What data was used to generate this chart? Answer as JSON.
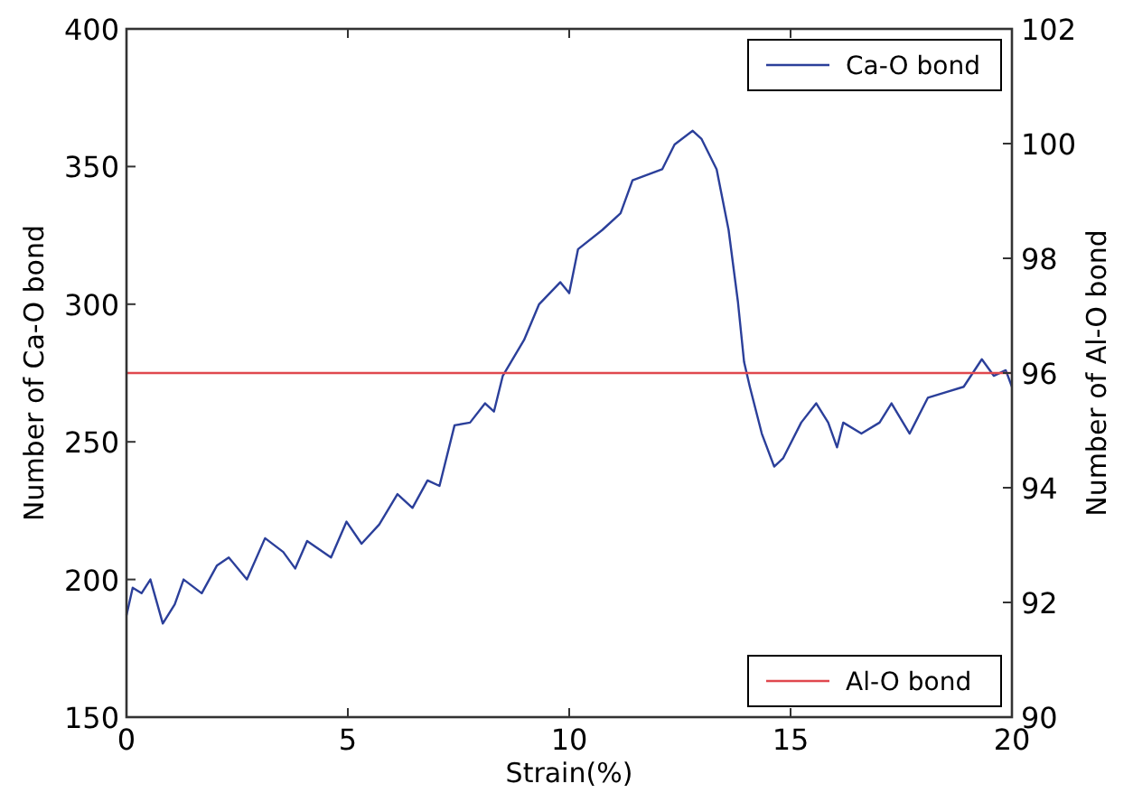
{
  "chart_data": {
    "type": "line",
    "xlabel": "Strain(%)",
    "ylabel": "Number of Ca-O bond",
    "y2label": "Number of Al-O bond",
    "xlim": [
      0,
      20
    ],
    "xticks": [
      0,
      5,
      10,
      15,
      20
    ],
    "ylim": [
      150,
      400
    ],
    "yticks": [
      150,
      200,
      250,
      300,
      350,
      400
    ],
    "y2lim": [
      90,
      102
    ],
    "y2ticks": [
      90,
      92,
      94,
      96,
      98,
      100,
      102
    ],
    "grid": false,
    "legend": "right",
    "line_style": "solid",
    "marker": "none",
    "series": [
      {
        "name": "Ca-O bond",
        "color": "#2b3f9a",
        "x": [
          0.0,
          0.14,
          0.34,
          0.54,
          0.82,
          1.09,
          1.29,
          1.7,
          2.04,
          2.31,
          2.72,
          3.13,
          3.54,
          3.81,
          4.08,
          4.62,
          4.97,
          5.31,
          5.71,
          6.12,
          6.46,
          6.8,
          7.07,
          7.41,
          7.76,
          8.1,
          8.3,
          8.5,
          8.98,
          9.32,
          9.8,
          10.0,
          10.2,
          10.75,
          11.16,
          11.43,
          12.1,
          12.38,
          12.79,
          12.99,
          13.33,
          13.6,
          13.81,
          13.95,
          14.08,
          14.35,
          14.63,
          14.83,
          15.24,
          15.58,
          15.85,
          16.05,
          16.19,
          16.6,
          17.01,
          17.28,
          17.69,
          18.1,
          18.5,
          18.91,
          19.32,
          19.59,
          19.86,
          20.0
        ],
        "values": [
          187,
          197,
          195,
          200,
          184,
          191,
          200,
          195,
          205,
          208,
          200,
          215,
          210,
          204,
          214,
          208,
          221,
          213,
          220,
          231,
          226,
          236,
          234,
          256,
          257,
          264,
          261,
          274,
          287,
          300,
          308,
          304,
          320,
          327,
          333,
          345,
          349,
          358,
          363,
          360,
          349,
          327,
          301,
          279,
          270,
          253,
          241,
          244,
          257,
          264,
          257,
          248,
          257,
          253,
          257,
          264,
          253,
          266,
          268,
          270,
          280,
          274,
          276,
          270
        ]
      },
      {
        "name": "Al-O bond",
        "color": "#e0484e",
        "axis": "y2",
        "x": [
          0,
          20
        ],
        "values": [
          96,
          96
        ]
      }
    ]
  }
}
